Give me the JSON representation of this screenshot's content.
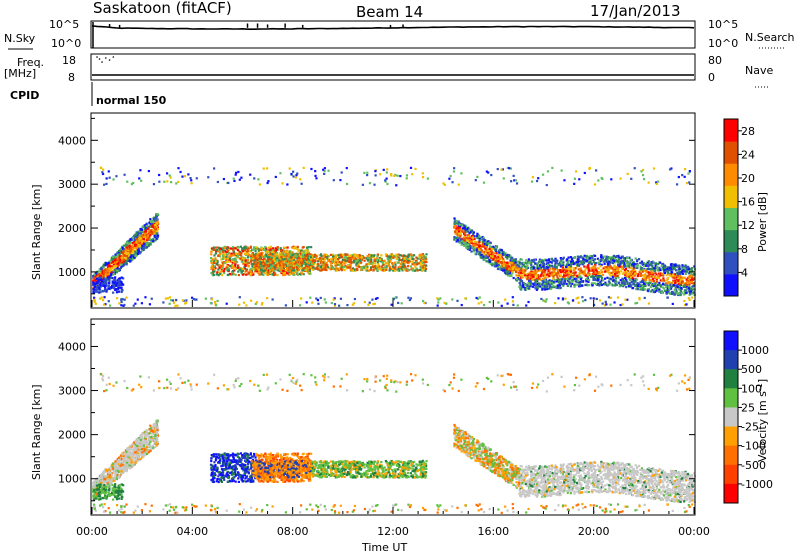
{
  "header": {
    "station": "Saskatoon (fitACF)",
    "beam": "Beam 14",
    "date": "17/Jan/2013"
  },
  "aux_panels": {
    "nsky_label": "N.Sky",
    "nsearch_label": "N.Search",
    "freq_label": "Freq.",
    "freq_unit": "[MHz]",
    "nave_label": "Nave",
    "cpid_label": "CPID",
    "cpid_value": "normal 150",
    "left_ticks_top": [
      "10^5",
      "10^0"
    ],
    "right_ticks_top": [
      "10^5",
      "10^0"
    ],
    "left_ticks_freq": [
      "18",
      "8"
    ],
    "right_ticks_nave": [
      "80",
      "0"
    ]
  },
  "colors": {
    "power": [
      "#1010ff",
      "#3050c0",
      "#2e8b57",
      "#60c060",
      "#f0c000",
      "#ff8c00",
      "#e05000",
      "#ff0000"
    ],
    "velocity": [
      "#1010ff",
      "#2040b0",
      "#208040",
      "#60c040",
      "#c8c8c8",
      "#ffa000",
      "#ff7000",
      "#ff4000",
      "#ff0000"
    ]
  },
  "chart_data": [
    {
      "type": "heatmap",
      "name": "power",
      "ylabel": "Slant Range [km]",
      "yticks": [
        1000,
        2000,
        3000,
        4000
      ],
      "ylim": [
        200,
        4600
      ],
      "xlim": [
        0,
        24
      ],
      "colorbar_label": "Power [dB]",
      "colorbar_ticks": [
        4,
        8,
        12,
        16,
        20,
        24,
        28
      ],
      "colorbar_range": [
        0,
        30
      ],
      "regions": [
        {
          "x": [
            0.0,
            2.6
          ],
          "y": [
            500,
            2300
          ],
          "desc": "band rising from 700 to 2200 km"
        },
        {
          "x": [
            4.7,
            8.7
          ],
          "y": [
            900,
            1600
          ]
        },
        {
          "x": [
            6.3,
            13.3
          ],
          "y": [
            1000,
            1500
          ]
        },
        {
          "x": [
            14.4,
            24.0
          ],
          "y": [
            400,
            2300
          ]
        }
      ]
    },
    {
      "type": "heatmap",
      "name": "velocity",
      "ylabel": "Slant Range [km]",
      "yticks": [
        1000,
        2000,
        3000,
        4000
      ],
      "ylim": [
        200,
        4600
      ],
      "xlim": [
        0,
        24
      ],
      "xlabel": "Time UT",
      "xticks": [
        "00:00",
        "04:00",
        "08:00",
        "12:00",
        "16:00",
        "20:00",
        "00:00"
      ],
      "colorbar_label": "Velocity [m s^-1]",
      "colorbar_ticks": [
        "1000",
        "500",
        "100",
        "25",
        "-25",
        "-100",
        "-500",
        "-1000"
      ]
    }
  ]
}
